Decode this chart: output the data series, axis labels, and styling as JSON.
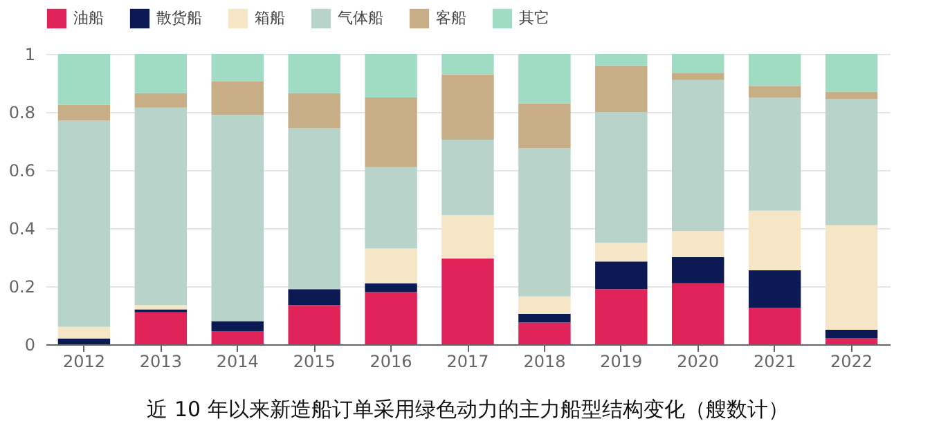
{
  "chart_data": {
    "type": "bar",
    "stacked": true,
    "title": "近 10 年以来新造船订单采用绿色动力的主力船型结构变化（艘数计）",
    "categories": [
      "2012",
      "2013",
      "2014",
      "2015",
      "2016",
      "2017",
      "2018",
      "2019",
      "2020",
      "2021",
      "2022"
    ],
    "series": [
      {
        "name": "油船",
        "color": "#e0245a",
        "values": [
          0,
          0.11,
          0.045,
          0.135,
          0.18,
          0.295,
          0.075,
          0.19,
          0.21,
          0.125,
          0.02
        ]
      },
      {
        "name": "散货船",
        "color": "#0b1a52",
        "values": [
          0.02,
          0.01,
          0.035,
          0.055,
          0.03,
          0,
          0.03,
          0.095,
          0.09,
          0.13,
          0.03
        ]
      },
      {
        "name": "箱船",
        "color": "#f5e6c8",
        "values": [
          0.04,
          0.015,
          0,
          0,
          0.12,
          0.15,
          0.06,
          0.065,
          0.09,
          0.205,
          0.36
        ]
      },
      {
        "name": "气体船",
        "color": "#b8d4ca",
        "values": [
          0.71,
          0.68,
          0.71,
          0.555,
          0.28,
          0.26,
          0.51,
          0.45,
          0.52,
          0.39,
          0.435
        ]
      },
      {
        "name": "客船",
        "color": "#c8ae87",
        "values": [
          0.055,
          0.05,
          0.115,
          0.12,
          0.24,
          0.225,
          0.155,
          0.16,
          0.025,
          0.04,
          0.025
        ]
      },
      {
        "name": "其它",
        "color": "#a0dcc4",
        "values": [
          0.175,
          0.135,
          0.095,
          0.135,
          0.15,
          0.07,
          0.17,
          0.04,
          0.065,
          0.11,
          0.13
        ]
      }
    ],
    "ylim": [
      0,
      1
    ],
    "yticks": [
      0,
      0.2,
      0.4,
      0.6,
      0.8,
      1
    ],
    "grid": "y",
    "legend": "top"
  }
}
